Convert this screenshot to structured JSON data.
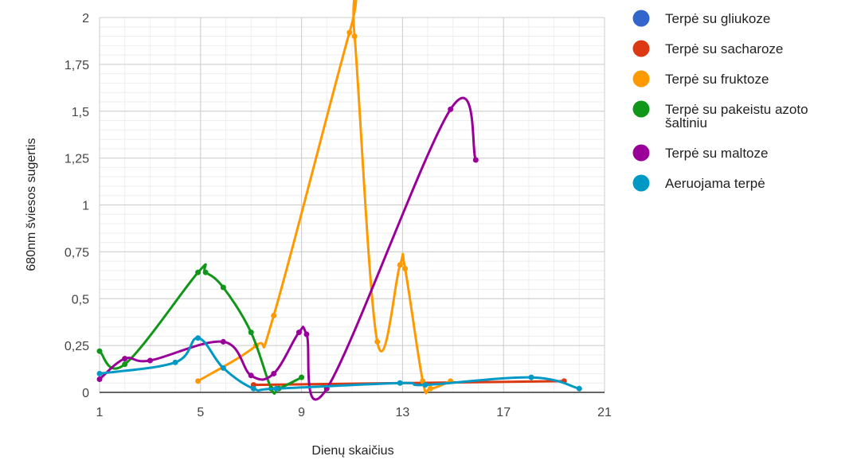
{
  "chart_data": {
    "type": "line",
    "xlabel": "Dienų skaičius",
    "ylabel": "680nm šviesos sugertis",
    "xlim": [
      1,
      21
    ],
    "ylim": [
      0,
      2
    ],
    "x_ticks": [
      "1",
      "5",
      "9",
      "13",
      "17",
      "21"
    ],
    "y_ticks": [
      "0",
      "0,25",
      "0,5",
      "0,75",
      "1",
      "1,25",
      "1,5",
      "1,75",
      "2"
    ],
    "grid": true,
    "legend_position": "right",
    "series": [
      {
        "name": "Terpė su gliukoze",
        "color": "#3366cc",
        "points": []
      },
      {
        "name": "Terpė su sacharoze",
        "color": "#dc3912",
        "points": [
          [
            7.1,
            0.04
          ],
          [
            19.4,
            0.06
          ]
        ]
      },
      {
        "name": "Terpė su fruktoze",
        "color": "#ff9900",
        "points": [
          [
            4.9,
            0.06
          ],
          [
            7.2,
            0.25
          ],
          [
            7.9,
            0.41
          ],
          [
            10.9,
            1.92
          ],
          [
            11.1,
            1.9
          ],
          [
            12.0,
            0.27
          ],
          [
            12.9,
            0.68
          ],
          [
            13.1,
            0.66
          ],
          [
            13.8,
            0.06
          ],
          [
            14.1,
            0.02
          ],
          [
            14.9,
            0.06
          ]
        ]
      },
      {
        "name": "Terpė su pakeistu azoto šaltiniu",
        "color": "#109618",
        "points": [
          [
            1.0,
            0.22
          ],
          [
            2.0,
            0.15
          ],
          [
            4.9,
            0.64
          ],
          [
            5.2,
            0.64
          ],
          [
            5.9,
            0.56
          ],
          [
            7.0,
            0.32
          ],
          [
            7.8,
            0.02
          ],
          [
            8.1,
            0.02
          ],
          [
            9.0,
            0.08
          ]
        ]
      },
      {
        "name": "Terpė su maltoze",
        "color": "#990099",
        "points": [
          [
            1.0,
            0.07
          ],
          [
            2.0,
            0.18
          ],
          [
            3.0,
            0.17
          ],
          [
            5.9,
            0.27
          ],
          [
            7.0,
            0.09
          ],
          [
            7.9,
            0.1
          ],
          [
            8.9,
            0.32
          ],
          [
            9.2,
            0.31
          ],
          [
            10.0,
            0.02
          ],
          [
            14.9,
            1.51
          ],
          [
            15.9,
            1.24
          ]
        ]
      },
      {
        "name": "Aeruojama terpė",
        "color": "#0099c6",
        "points": [
          [
            1.0,
            0.1
          ],
          [
            4.0,
            0.16
          ],
          [
            4.9,
            0.29
          ],
          [
            5.9,
            0.13
          ],
          [
            7.1,
            0.02
          ],
          [
            8.0,
            0.02
          ],
          [
            12.9,
            0.05
          ],
          [
            13.9,
            0.04
          ],
          [
            18.1,
            0.08
          ],
          [
            20.0,
            0.02
          ]
        ]
      }
    ]
  }
}
